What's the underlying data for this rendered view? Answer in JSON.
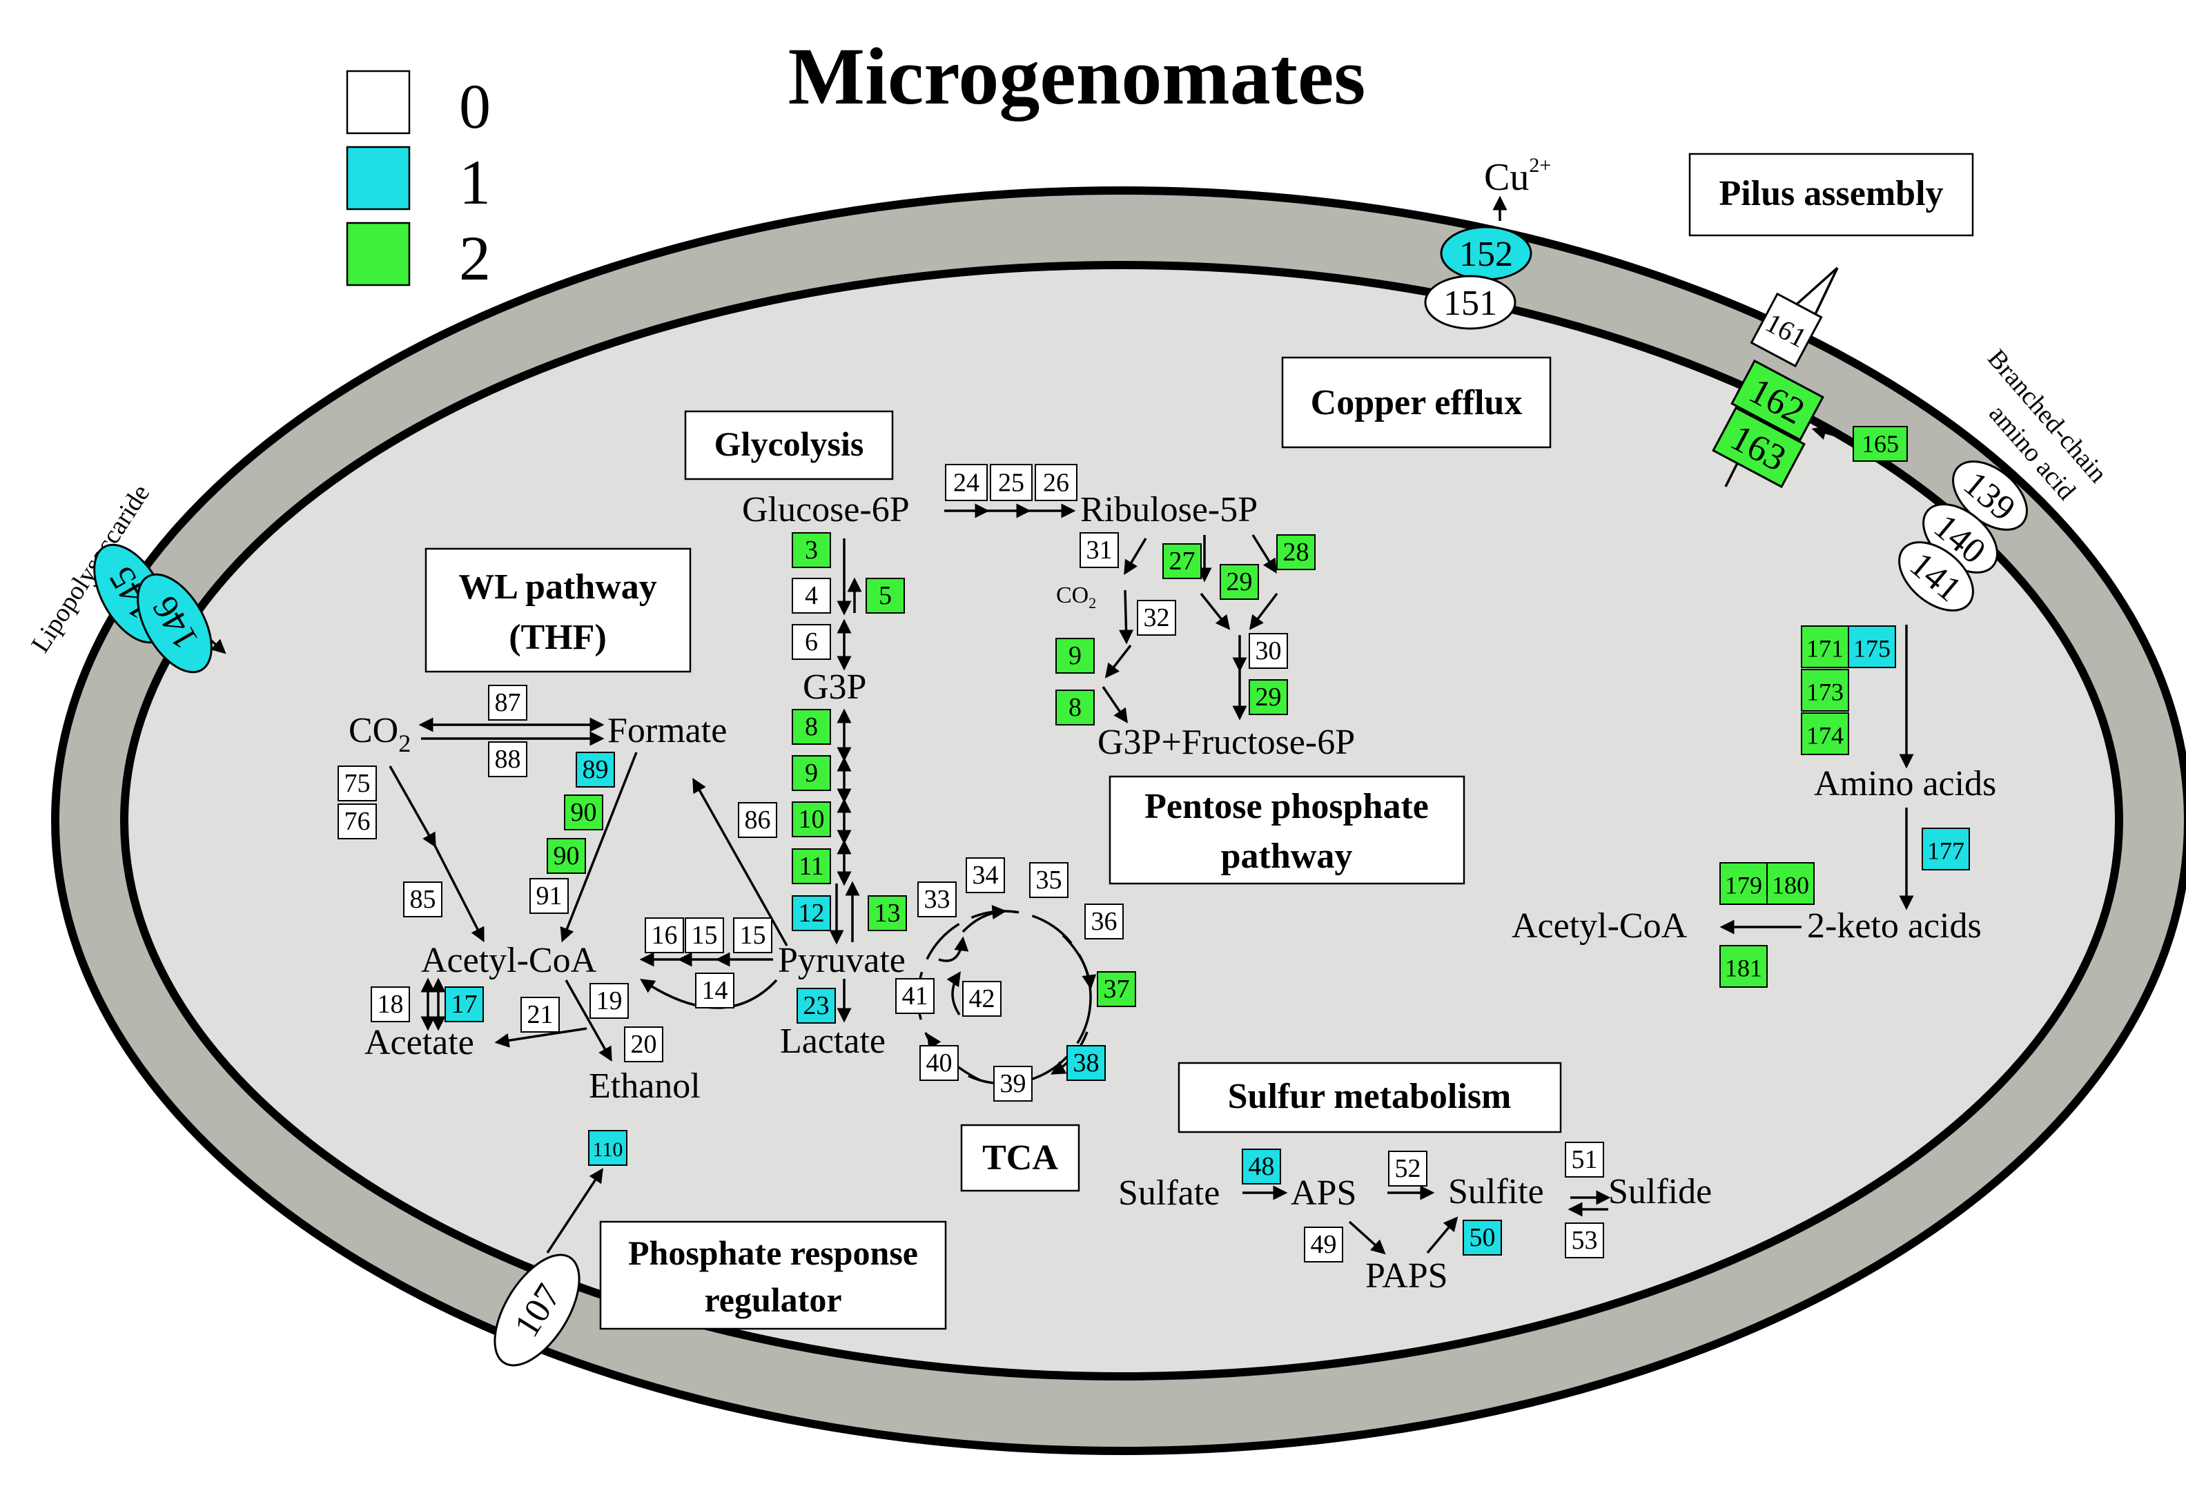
{
  "title": "Microgenomates",
  "colors": {
    "c0": "#ffffff",
    "c1": "#1ddfe4",
    "c2": "#3ef03a",
    "c1dark": "#11c6cc",
    "membrane": "#b7b7b0",
    "cytoplasm": "#dfdfdd"
  },
  "legend": [
    {
      "label": "0",
      "value": 0
    },
    {
      "label": "1",
      "value": 1
    },
    {
      "label": "2",
      "value": 2
    }
  ],
  "sections": {
    "glycolysis": "Glycolysis",
    "wl1": "WL pathway",
    "wl2": "(THF)",
    "ppp1": "Pentose phosphate",
    "ppp2": "pathway",
    "copper": "Copper efflux",
    "pilus": "Pilus assembly",
    "tca": "TCA",
    "sulfur": "Sulfur metabolism",
    "pho1": "Phosphate response",
    "pho2": "regulator"
  },
  "metabolites": {
    "glucose6p": "Glucose-6P",
    "ribulose5p": "Ribulose-5P",
    "g3p": "G3P",
    "g3pf6p": "G3P+Fructose-6P",
    "co2": "CO",
    "co2sub": "2",
    "co2small": "CO",
    "co2smallsub": "2",
    "formate": "Formate",
    "acetylcoa": "Acetyl-CoA",
    "acetate": "Acetate",
    "ethanol": "Ethanol",
    "pyruvate": "Pyruvate",
    "lactate": "Lactate",
    "aminoacids": "Amino acids",
    "ketoacids": "2-keto acids",
    "acetylcoa2": "Acetyl-CoA",
    "sulfate": "Sulfate",
    "aps": "APS",
    "sulfite": "Sulfite",
    "sulfide": "Sulfide",
    "paps": "PAPS",
    "cu": "Cu",
    "cusup": "2+",
    "lps": "Lipopolysaccaride",
    "bcaa1": "Branched-chain",
    "bcaa2": "amino acid"
  },
  "genes": [
    {
      "id": "24",
      "v": 0
    },
    {
      "id": "25",
      "v": 0
    },
    {
      "id": "26",
      "v": 0
    },
    {
      "id": "3",
      "v": 2
    },
    {
      "id": "4",
      "v": 0
    },
    {
      "id": "5",
      "v": 2
    },
    {
      "id": "6",
      "v": 0
    },
    {
      "id": "8",
      "v": 2
    },
    {
      "id": "9",
      "v": 2
    },
    {
      "id": "10",
      "v": 2
    },
    {
      "id": "11",
      "v": 2
    },
    {
      "id": "12",
      "v": 1
    },
    {
      "id": "13",
      "v": 2
    },
    {
      "id": "23",
      "v": 1
    },
    {
      "id": "31",
      "v": 0
    },
    {
      "id": "27",
      "v": 2
    },
    {
      "id": "29",
      "v": 2
    },
    {
      "id": "28",
      "v": 2
    },
    {
      "id": "32",
      "v": 0
    },
    {
      "id": "9",
      "v": 2
    },
    {
      "id": "30",
      "v": 0
    },
    {
      "id": "8",
      "v": 2
    },
    {
      "id": "29",
      "v": 2
    },
    {
      "id": "87",
      "v": 0
    },
    {
      "id": "88",
      "v": 0
    },
    {
      "id": "75",
      "v": 0
    },
    {
      "id": "76",
      "v": 0
    },
    {
      "id": "89",
      "v": 1
    },
    {
      "id": "90",
      "v": 2
    },
    {
      "id": "90",
      "v": 2
    },
    {
      "id": "91",
      "v": 0
    },
    {
      "id": "85",
      "v": 0
    },
    {
      "id": "86",
      "v": 0
    },
    {
      "id": "16",
      "v": 0
    },
    {
      "id": "15",
      "v": 0
    },
    {
      "id": "15",
      "v": 0
    },
    {
      "id": "14",
      "v": 0
    },
    {
      "id": "18",
      "v": 0
    },
    {
      "id": "17",
      "v": 1
    },
    {
      "id": "21",
      "v": 0
    },
    {
      "id": "19",
      "v": 0
    },
    {
      "id": "20",
      "v": 0
    },
    {
      "id": "34",
      "v": 0
    },
    {
      "id": "35",
      "v": 0
    },
    {
      "id": "33",
      "v": 0
    },
    {
      "id": "36",
      "v": 0
    },
    {
      "id": "37",
      "v": 2
    },
    {
      "id": "41",
      "v": 0
    },
    {
      "id": "42",
      "v": 0
    },
    {
      "id": "38",
      "v": 1
    },
    {
      "id": "40",
      "v": 0
    },
    {
      "id": "39",
      "v": 0
    },
    {
      "id": "110",
      "v": 1
    },
    {
      "id": "171",
      "v": 2
    },
    {
      "id": "175",
      "v": 1
    },
    {
      "id": "173",
      "v": 2
    },
    {
      "id": "174",
      "v": 2
    },
    {
      "id": "177",
      "v": 1
    },
    {
      "id": "179",
      "v": 2
    },
    {
      "id": "180",
      "v": 2
    },
    {
      "id": "181",
      "v": 2
    },
    {
      "id": "165",
      "v": 2
    },
    {
      "id": "48",
      "v": 1
    },
    {
      "id": "52",
      "v": 0
    },
    {
      "id": "51",
      "v": 0
    },
    {
      "id": "49",
      "v": 0
    },
    {
      "id": "50",
      "v": 1
    },
    {
      "id": "53",
      "v": 0
    }
  ],
  "transporters": [
    {
      "id": "145",
      "v": 1
    },
    {
      "id": "146",
      "v": 1
    },
    {
      "id": "152",
      "v": 1
    },
    {
      "id": "151",
      "v": 0
    },
    {
      "id": "139",
      "v": 0
    },
    {
      "id": "140",
      "v": 0
    },
    {
      "id": "141",
      "v": 0
    },
    {
      "id": "107",
      "v": 0
    }
  ],
  "pilus": [
    {
      "id": "161",
      "v": 0
    },
    {
      "id": "162",
      "v": 2
    },
    {
      "id": "163",
      "v": 2
    }
  ]
}
